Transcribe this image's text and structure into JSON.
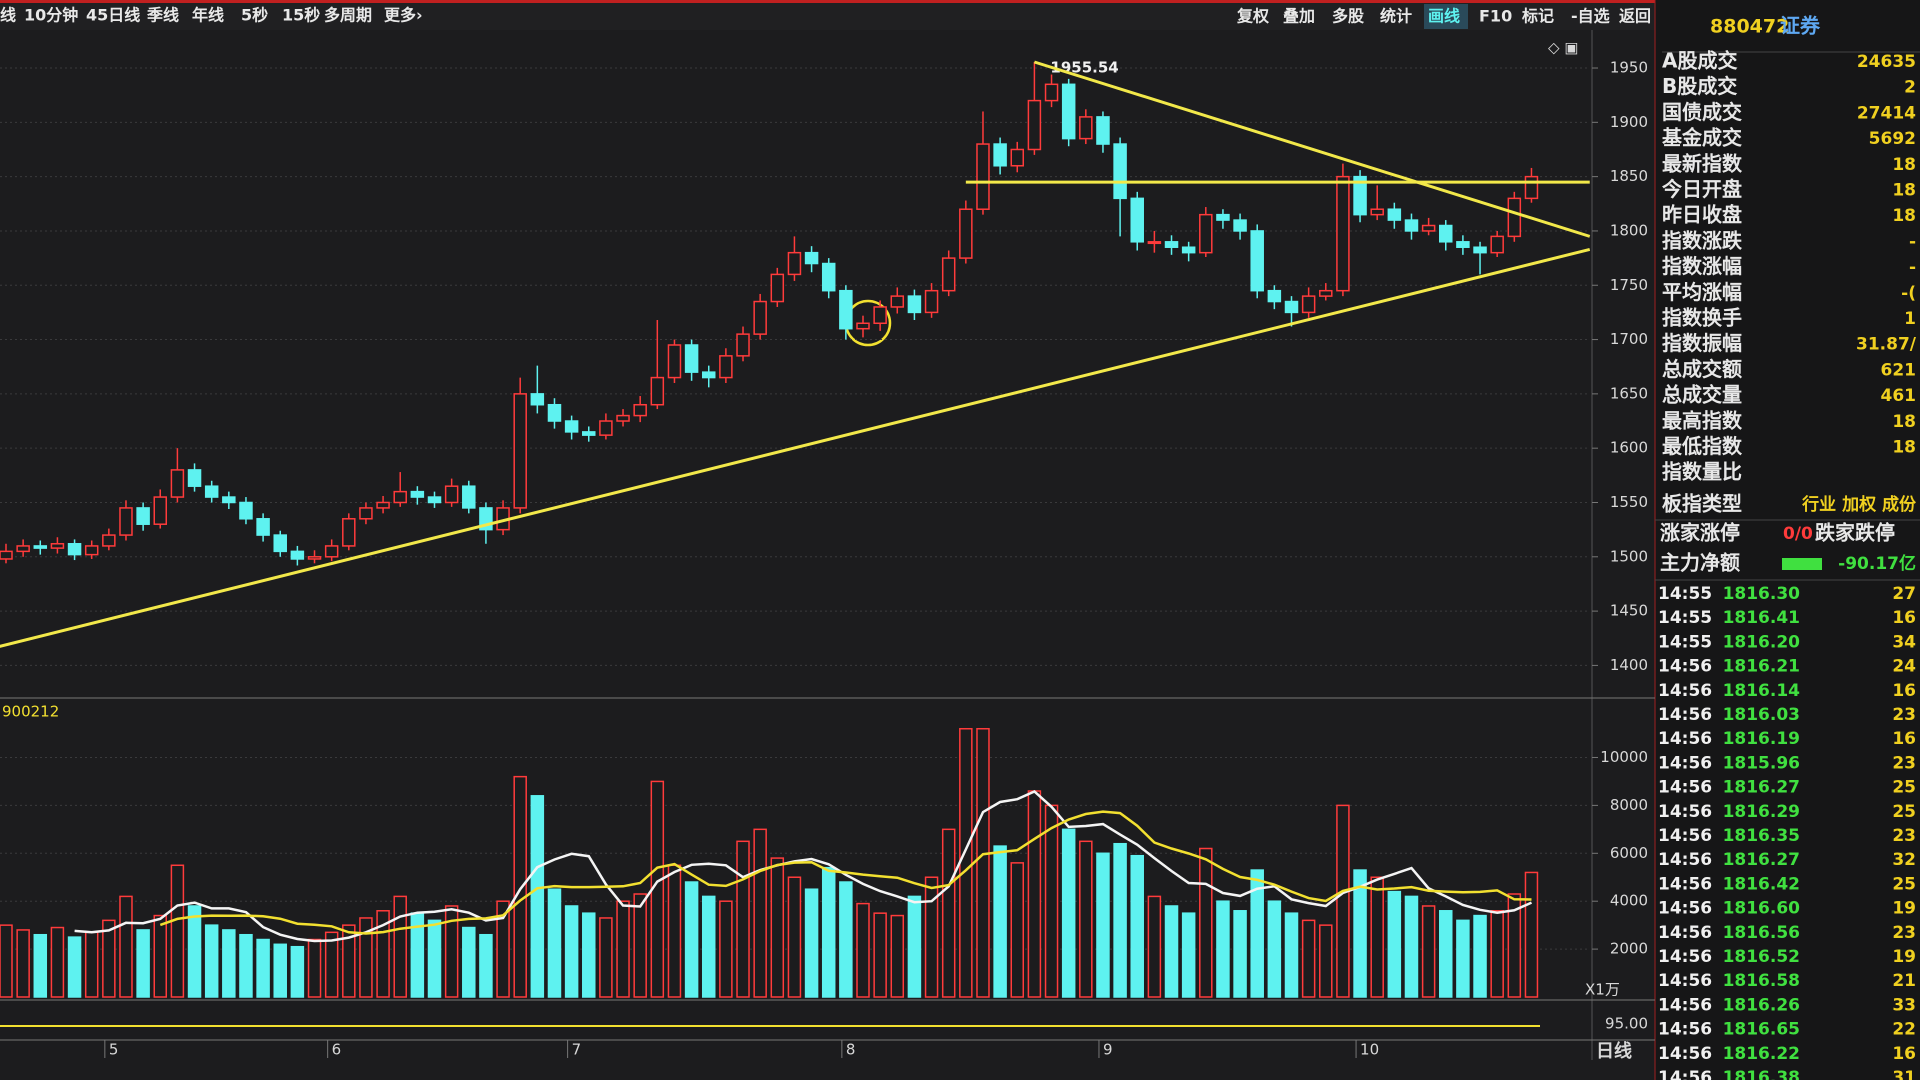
{
  "toolbar": {
    "left": [
      "线",
      "10分钟",
      "45日线",
      "季线",
      "年线",
      "5秒",
      "15秒",
      "多周期",
      "更多›"
    ],
    "right": [
      "复权",
      "叠加",
      "多股",
      "统计",
      "画线",
      "F10",
      "标记",
      "-自选",
      "返回"
    ]
  },
  "chart_data": {
    "type": "candlestick",
    "up_color": "#ff3b3b",
    "down_color": "#5ef2f0",
    "grid": true,
    "ohlc": [
      [
        1498,
        1512,
        1494,
        1505
      ],
      [
        1505,
        1516,
        1500,
        1510
      ],
      [
        1510,
        1515,
        1502,
        1508
      ],
      [
        1508,
        1518,
        1503,
        1512
      ],
      [
        1512,
        1516,
        1497,
        1502
      ],
      [
        1502,
        1515,
        1498,
        1510
      ],
      [
        1510,
        1526,
        1506,
        1520
      ],
      [
        1520,
        1552,
        1515,
        1545
      ],
      [
        1545,
        1550,
        1524,
        1530
      ],
      [
        1530,
        1562,
        1526,
        1555
      ],
      [
        1555,
        1600,
        1550,
        1580
      ],
      [
        1580,
        1586,
        1560,
        1565
      ],
      [
        1565,
        1570,
        1550,
        1555
      ],
      [
        1555,
        1560,
        1544,
        1550
      ],
      [
        1550,
        1555,
        1530,
        1535
      ],
      [
        1535,
        1540,
        1514,
        1520
      ],
      [
        1520,
        1524,
        1500,
        1505
      ],
      [
        1505,
        1510,
        1492,
        1498
      ],
      [
        1498,
        1506,
        1494,
        1500
      ],
      [
        1500,
        1516,
        1496,
        1510
      ],
      [
        1510,
        1540,
        1506,
        1535
      ],
      [
        1535,
        1550,
        1530,
        1545
      ],
      [
        1545,
        1556,
        1540,
        1550
      ],
      [
        1550,
        1578,
        1546,
        1560
      ],
      [
        1560,
        1565,
        1548,
        1555
      ],
      [
        1555,
        1560,
        1545,
        1550
      ],
      [
        1550,
        1572,
        1546,
        1565
      ],
      [
        1565,
        1570,
        1540,
        1545
      ],
      [
        1545,
        1550,
        1512,
        1525
      ],
      [
        1525,
        1552,
        1520,
        1545
      ],
      [
        1545,
        1665,
        1540,
        1650
      ],
      [
        1650,
        1676,
        1632,
        1640
      ],
      [
        1640,
        1646,
        1618,
        1625
      ],
      [
        1625,
        1630,
        1608,
        1615
      ],
      [
        1615,
        1620,
        1606,
        1612
      ],
      [
        1612,
        1632,
        1608,
        1625
      ],
      [
        1625,
        1636,
        1620,
        1630
      ],
      [
        1630,
        1648,
        1624,
        1640
      ],
      [
        1640,
        1718,
        1636,
        1665
      ],
      [
        1665,
        1700,
        1660,
        1695
      ],
      [
        1695,
        1700,
        1662,
        1670
      ],
      [
        1670,
        1676,
        1656,
        1665
      ],
      [
        1665,
        1692,
        1660,
        1685
      ],
      [
        1685,
        1712,
        1680,
        1705
      ],
      [
        1705,
        1742,
        1700,
        1735
      ],
      [
        1735,
        1766,
        1730,
        1760
      ],
      [
        1760,
        1795,
        1754,
        1780
      ],
      [
        1780,
        1786,
        1762,
        1770
      ],
      [
        1770,
        1775,
        1738,
        1745
      ],
      [
        1745,
        1750,
        1700,
        1710
      ],
      [
        1710,
        1722,
        1702,
        1715
      ],
      [
        1715,
        1736,
        1708,
        1730
      ],
      [
        1730,
        1748,
        1724,
        1740
      ],
      [
        1740,
        1746,
        1718,
        1725
      ],
      [
        1725,
        1752,
        1720,
        1745
      ],
      [
        1745,
        1782,
        1740,
        1775
      ],
      [
        1775,
        1828,
        1770,
        1820
      ],
      [
        1820,
        1910,
        1815,
        1880
      ],
      [
        1880,
        1886,
        1852,
        1860
      ],
      [
        1860,
        1882,
        1854,
        1875
      ],
      [
        1875,
        1955.54,
        1870,
        1920
      ],
      [
        1920,
        1944,
        1914,
        1935
      ],
      [
        1935,
        1940,
        1878,
        1885
      ],
      [
        1885,
        1912,
        1880,
        1905
      ],
      [
        1905,
        1910,
        1872,
        1880
      ],
      [
        1880,
        1886,
        1795,
        1830
      ],
      [
        1830,
        1836,
        1782,
        1790
      ],
      [
        1790,
        1800,
        1780,
        1790
      ],
      [
        1790,
        1796,
        1778,
        1785
      ],
      [
        1785,
        1790,
        1772,
        1780
      ],
      [
        1780,
        1822,
        1776,
        1815
      ],
      [
        1815,
        1820,
        1802,
        1810
      ],
      [
        1810,
        1816,
        1792,
        1800
      ],
      [
        1800,
        1806,
        1738,
        1745
      ],
      [
        1745,
        1750,
        1728,
        1735
      ],
      [
        1735,
        1740,
        1712,
        1725
      ],
      [
        1725,
        1748,
        1720,
        1740
      ],
      [
        1740,
        1752,
        1736,
        1745
      ],
      [
        1745,
        1862,
        1740,
        1850
      ],
      [
        1850,
        1856,
        1808,
        1815
      ],
      [
        1815,
        1842,
        1810,
        1820
      ],
      [
        1820,
        1826,
        1802,
        1810
      ],
      [
        1810,
        1816,
        1792,
        1800
      ],
      [
        1800,
        1812,
        1796,
        1805
      ],
      [
        1805,
        1810,
        1782,
        1790
      ],
      [
        1790,
        1796,
        1778,
        1785
      ],
      [
        1785,
        1790,
        1760,
        1780
      ],
      [
        1780,
        1800,
        1776,
        1795
      ],
      [
        1795,
        1836,
        1790,
        1830
      ],
      [
        1830,
        1858,
        1826,
        1850
      ]
    ],
    "ylim": [
      1370,
      1985
    ],
    "yticks": [
      1400,
      1450,
      1500,
      1550,
      1600,
      1650,
      1700,
      1750,
      1800,
      1850,
      1900,
      1950
    ],
    "trend_lines": [
      {
        "color": "#f2e84a",
        "x": [
          -0.5,
          92.4
        ],
        "y": [
          1417,
          1783
        ]
      },
      {
        "color": "#f2e84a",
        "x": [
          60,
          92.4
        ],
        "y": [
          1955.54,
          1795
        ]
      },
      {
        "color": "#f2e84a",
        "x": [
          56,
          92.4
        ],
        "y": [
          1845,
          1845
        ]
      }
    ],
    "xticks": [
      {
        "value": 6,
        "label": "5"
      },
      {
        "value": 19,
        "label": "6"
      },
      {
        "value": 33,
        "label": "7"
      },
      {
        "value": 49,
        "label": "8"
      },
      {
        "value": 64,
        "label": "9"
      },
      {
        "value": 79,
        "label": "10"
      }
    ],
    "period": "日线",
    "volume": {
      "title": "900212",
      "unit": "X1万",
      "ylim": [
        0,
        12400
      ],
      "yticks": [
        2000,
        4000,
        6000,
        8000,
        10000
      ],
      "values": [
        3000,
        2800,
        2600,
        2900,
        2500,
        2700,
        3200,
        4200,
        2800,
        3400,
        5500,
        3800,
        3000,
        2800,
        2600,
        2400,
        2200,
        2100,
        2400,
        2700,
        3000,
        3300,
        3600,
        4200,
        3500,
        3200,
        3800,
        2900,
        2600,
        4000,
        9200,
        8400,
        4500,
        3800,
        3500,
        3300,
        4000,
        4300,
        9000,
        5500,
        4800,
        4200,
        4000,
        6500,
        7000,
        5800,
        5000,
        4500,
        5400,
        4800,
        3900,
        3500,
        3400,
        4200,
        5000,
        7000,
        11200,
        11200,
        6300,
        5600,
        8600,
        8000,
        7000,
        6500,
        6000,
        6400,
        5900,
        4200,
        3800,
        3500,
        6200,
        4000,
        3600,
        5300,
        4000,
        3500,
        3200,
        3000,
        8000,
        5300,
        5000,
        4400,
        4200,
        3800,
        3600,
        3200,
        3400,
        3600,
        4300,
        5200
      ],
      "ma": [
        {
          "color": "#f4f4f4",
          "values": [
            null,
            null,
            null,
            null,
            2760,
            2700,
            2780,
            3100,
            3080,
            3260,
            3820,
            3940,
            3700,
            3700,
            3540,
            2920,
            2600,
            2420,
            2340,
            2360,
            2480,
            2700,
            3000,
            3360,
            3520,
            3560,
            3660,
            3520,
            3200,
            3300,
            4500,
            5420,
            5740,
            5980,
            5880,
            4700,
            3820,
            3780,
            4820,
            5220,
            5520,
            5560,
            5500,
            5000,
            5300,
            5500,
            5660,
            5760,
            5540,
            5100,
            4720,
            4420,
            4200,
            3960,
            4000,
            4620,
            6160,
            7720,
            8140,
            8260,
            8580,
            7940,
            7100,
            7140,
            7220,
            6780,
            6360,
            5800,
            5260,
            4760,
            4720,
            4340,
            4220,
            4520,
            4620,
            4080,
            3920,
            3800,
            4340,
            4600,
            4900,
            5140,
            5380,
            4540,
            4200,
            3840,
            3640,
            3520,
            3620,
            3940
          ]
        },
        {
          "color": "#f2e030",
          "values": [
            null,
            null,
            null,
            null,
            null,
            null,
            null,
            null,
            null,
            3010,
            3260,
            3360,
            3400,
            3390,
            3400,
            3370,
            3270,
            3060,
            3020,
            2950,
            2700,
            2650,
            2710,
            2850,
            2940,
            3020,
            3180,
            3260,
            3280,
            3410,
            4030,
            4540,
            4630,
            4590,
            4590,
            4600,
            4620,
            4760,
            5400,
            5550,
            5110,
            4690,
            4640,
            4910,
            5260,
            5510,
            5610,
            5630,
            5270,
            5200,
            5110,
            5040,
            4980,
            4750,
            4550,
            4670,
            5290,
            5960,
            6050,
            6130,
            6600,
            7050,
            7410,
            7640,
            7740,
            7680,
            7150,
            6450,
            6200,
            5990,
            5750,
            5350,
            5010,
            4890,
            4690,
            4400,
            4130,
            4010,
            4430,
            4610,
            4490,
            4530,
            4590,
            4440,
            4400,
            4370,
            4390,
            4450,
            4080,
            4070
          ]
        }
      ]
    },
    "lower_tick": {
      "value": 95,
      "label": "95.00"
    }
  },
  "quote_panel": {
    "code": "880472",
    "market": "证券",
    "rows": [
      {
        "label": "A股成交",
        "value": "24635"
      },
      {
        "label": "B股成交",
        "value": "2"
      },
      {
        "label": "国债成交",
        "value": "27414"
      },
      {
        "label": "基金成交",
        "value": "5692"
      },
      {
        "label": "最新指数",
        "value": "18"
      },
      {
        "label": "今日开盘",
        "value": "18"
      },
      {
        "label": "昨日收盘",
        "value": "18"
      },
      {
        "label": "指数涨跌",
        "value": "-"
      },
      {
        "label": "指数涨幅",
        "value": "-"
      },
      {
        "label": "平均涨幅",
        "value": "-("
      },
      {
        "label": "指数换手",
        "value": "1"
      },
      {
        "label": "指数振幅",
        "value": "31.87/"
      },
      {
        "label": "总成交额",
        "value": "621"
      },
      {
        "label": "总成交量",
        "value": "461"
      },
      {
        "label": "最高指数",
        "value": "18"
      },
      {
        "label": "最低指数",
        "value": "18"
      },
      {
        "label": "指数量比"
      }
    ],
    "index_type": {
      "label": "板指类型",
      "value": "行业 加权 成份"
    },
    "limits": {
      "label": "涨家涨停",
      "value": "0/0",
      "label2": "跌家跌停"
    },
    "net_flow": {
      "label": "主力净额",
      "value": "-90.17亿"
    },
    "ticks": [
      [
        "14:55",
        "1816.30",
        "27"
      ],
      [
        "14:55",
        "1816.41",
        "16"
      ],
      [
        "14:55",
        "1816.20",
        "34"
      ],
      [
        "14:56",
        "1816.21",
        "24"
      ],
      [
        "14:56",
        "1816.14",
        "16"
      ],
      [
        "14:56",
        "1816.03",
        "23"
      ],
      [
        "14:56",
        "1816.19",
        "16"
      ],
      [
        "14:56",
        "1815.96",
        "23"
      ],
      [
        "14:56",
        "1816.27",
        "25"
      ],
      [
        "14:56",
        "1816.29",
        "25"
      ],
      [
        "14:56",
        "1816.35",
        "23"
      ],
      [
        "14:56",
        "1816.27",
        "32"
      ],
      [
        "14:56",
        "1816.42",
        "25"
      ],
      [
        "14:56",
        "1816.60",
        "19"
      ],
      [
        "14:56",
        "1816.56",
        "23"
      ],
      [
        "14:56",
        "1816.52",
        "19"
      ],
      [
        "14:56",
        "1816.58",
        "21"
      ],
      [
        "14:56",
        "1816.26",
        "33"
      ],
      [
        "14:56",
        "1816.65",
        "22"
      ],
      [
        "14:56",
        "1816.22",
        "16"
      ],
      [
        "14:56",
        "1816.38",
        "31"
      ]
    ]
  }
}
